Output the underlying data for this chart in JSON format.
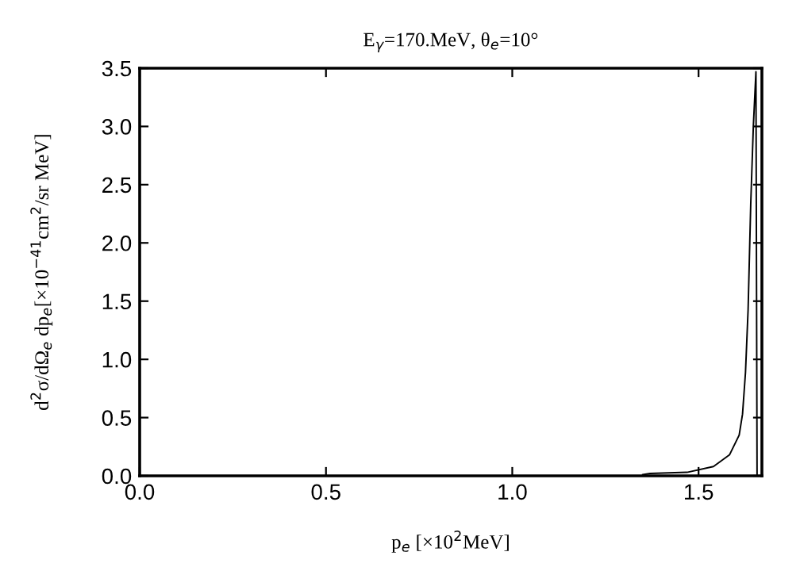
{
  "chart_data": {
    "type": "line",
    "title": "E$_{γ}$=170.MeV, θ$_{e}$=10°",
    "xlabel": "p$_{e}$ [×10$^{2}$MeV]",
    "ylabel": "d$^{2}$σ/dΩ$_{e}$ dp$_{e}$[×10$^{−41}$cm$^{2}$/sr MeV]",
    "series": [
      {
        "color": "#000000",
        "x": [
          1.35,
          1.37,
          1.469,
          1.54,
          1.583,
          1.609,
          1.618,
          1.626,
          1.633,
          1.64,
          1.647,
          1.654,
          1.657
        ],
        "values": [
          0.01,
          0.02,
          0.03,
          0.08,
          0.18,
          0.35,
          0.53,
          0.89,
          1.43,
          2.33,
          3.0,
          3.47,
          0.0
        ]
      }
    ],
    "xlim": [
      0,
      1.67
    ],
    "ylim": [
      0,
      3.5
    ],
    "xticks": [
      {
        "value": 0,
        "label": "0.0"
      },
      0.5,
      {
        "value": 1,
        "label": "1.0"
      },
      1.5
    ],
    "yticks": [
      {
        "value": 0,
        "label": "0.0"
      },
      0.5,
      {
        "value": 1,
        "label": "1.0"
      },
      1.5,
      {
        "value": 2,
        "label": "2.0"
      },
      2.5,
      {
        "value": 3,
        "label": "3.0"
      },
      3.5
    ],
    "grid": false,
    "marker": "none",
    "line_style": "solid",
    "legend": false
  }
}
